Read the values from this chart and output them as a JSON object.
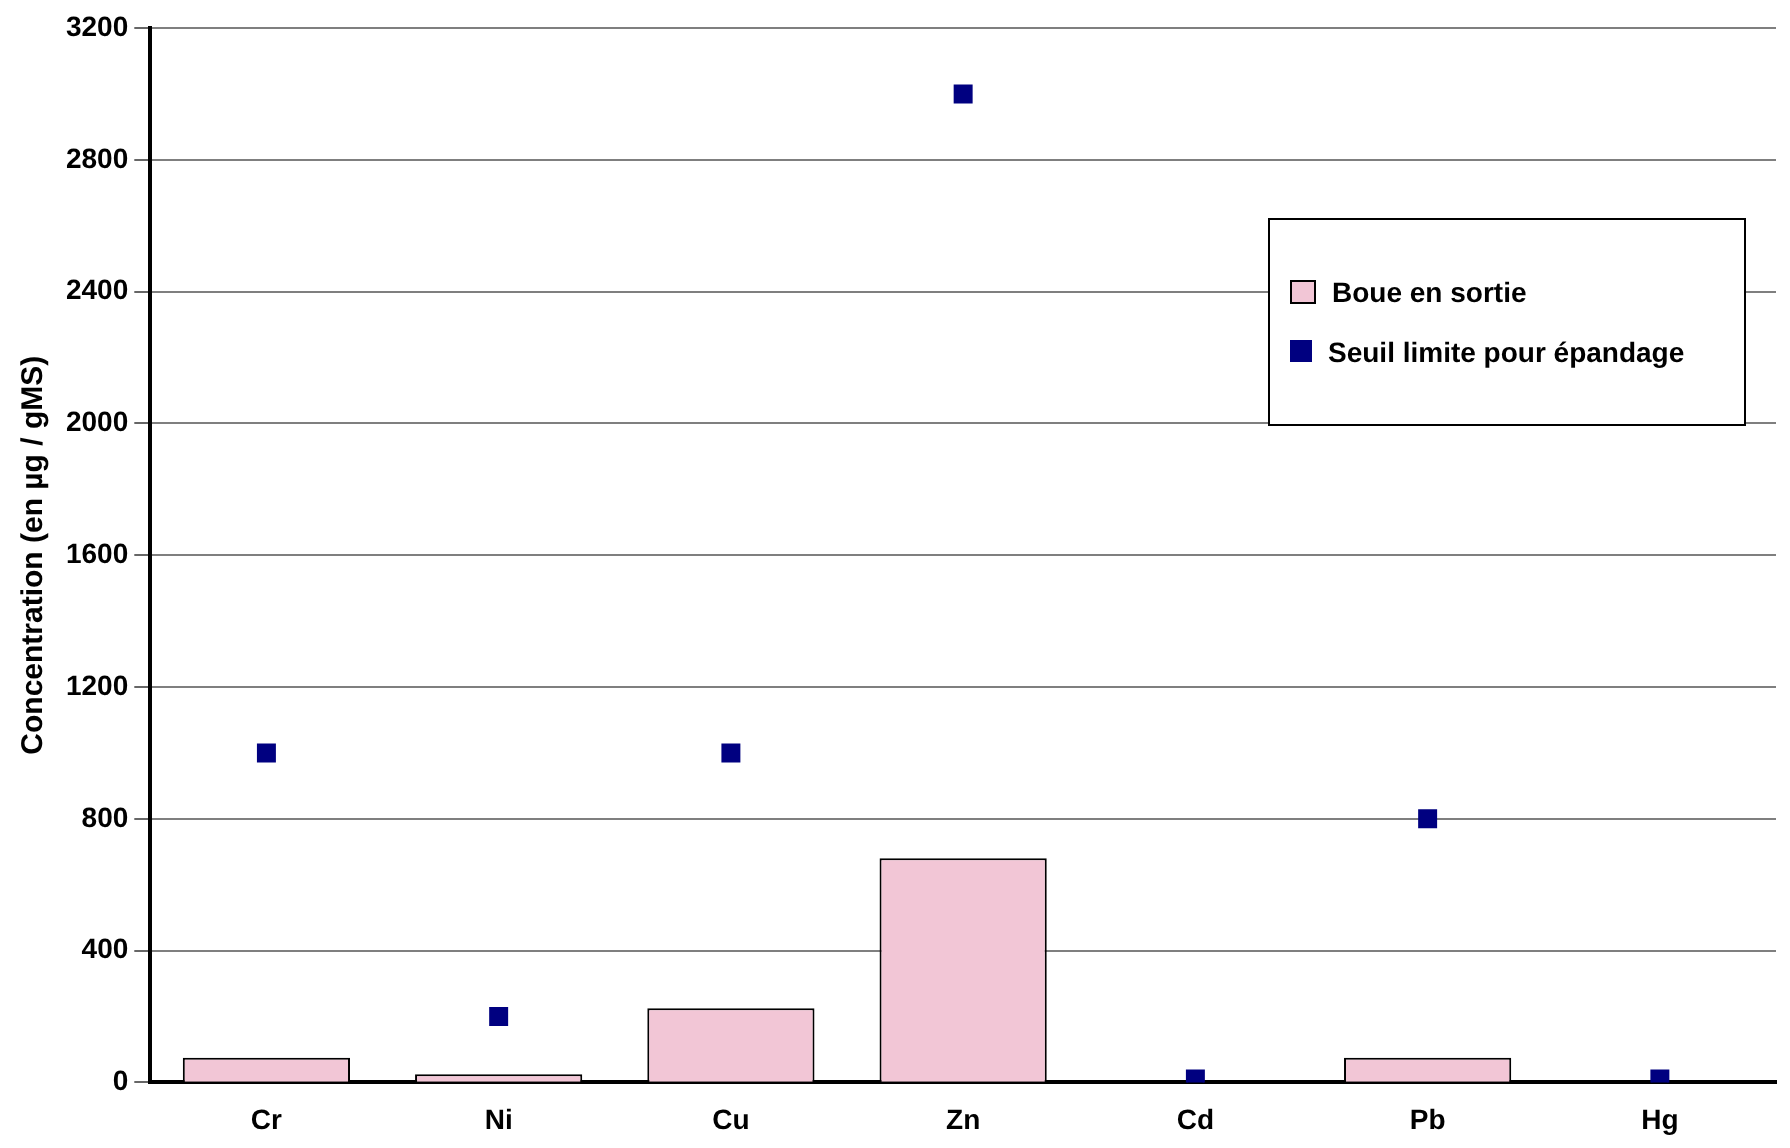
{
  "chart_data": {
    "type": "bar",
    "ylabel": "Concentration (en µg / gMS)",
    "categories": [
      "Cr",
      "Ni",
      "Cu",
      "Zn",
      "Cd",
      "Pb",
      "Hg"
    ],
    "series": [
      {
        "name": "Boue en sortie",
        "color": "#f2c6d6",
        "values": [
          75,
          25,
          225,
          680,
          null,
          75,
          null
        ]
      },
      {
        "name": "Seuil limite pour épandage",
        "type": "scatter",
        "marker": "square",
        "color": "#000080",
        "x": [
          "Cr",
          "Ni",
          "Cu",
          "Zn",
          "Cd",
          "Pb",
          "Hg"
        ],
        "values": [
          1000,
          200,
          1000,
          3000,
          10,
          800,
          10
        ]
      }
    ],
    "ylim": [
      0,
      3200
    ],
    "yticks": [
      0,
      400,
      800,
      1200,
      1600,
      2000,
      2400,
      2800,
      3200
    ],
    "grid": "y",
    "legend": "top right"
  }
}
